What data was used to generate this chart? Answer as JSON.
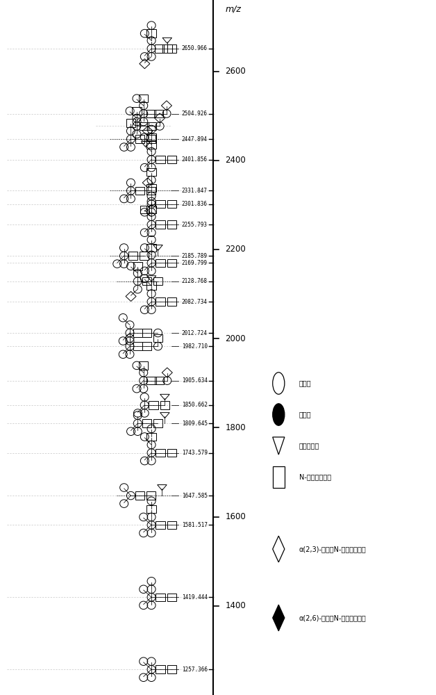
{
  "ymin": 1200,
  "ymax": 2760,
  "yticks": [
    1400,
    1600,
    1800,
    2000,
    2200,
    2400,
    2600
  ],
  "axis_label": "m/z",
  "bg_color": "#ffffff",
  "peaks": [
    {
      "mz": 1257.366
    },
    {
      "mz": 1419.444
    },
    {
      "mz": 1581.517
    },
    {
      "mz": 1647.585
    },
    {
      "mz": 1743.579
    },
    {
      "mz": 1809.645
    },
    {
      "mz": 1850.662
    },
    {
      "mz": 1905.634
    },
    {
      "mz": 1982.71
    },
    {
      "mz": 2012.724
    },
    {
      "mz": 2082.734
    },
    {
      "mz": 2128.768
    },
    {
      "mz": 2169.799
    },
    {
      "mz": 2185.789
    },
    {
      "mz": 2255.793
    },
    {
      "mz": 2301.836
    },
    {
      "mz": 2331.847
    },
    {
      "mz": 2401.856
    },
    {
      "mz": 2447.894
    },
    {
      "mz": 2504.926
    },
    {
      "mz": 2650.966
    }
  ],
  "legend_labels": [
    "半乳糖",
    "甘露糖",
    "海藻葡萄糖",
    "N-乙酰神经氨酸",
    "α(2,3)-连接的N-乙酰神经氨酸",
    "α(2,6)-连接的N-乙酰神经氨酸"
  ]
}
